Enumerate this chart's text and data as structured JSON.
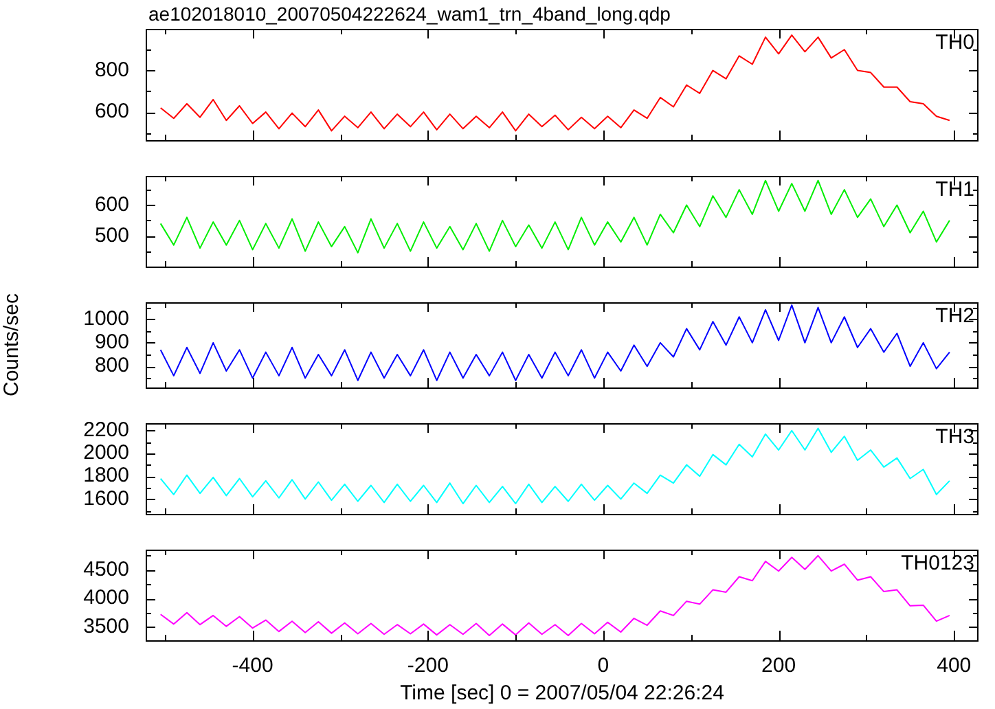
{
  "chart_data": [
    {
      "type": "line",
      "title": "ae102018010_20070504222624_wam1_trn_4band_long.qdp",
      "marker": "none",
      "tick_labels": "y",
      "x": [
        -505,
        -490,
        -475,
        -460,
        -445,
        -430,
        -415,
        -400,
        -385,
        -370,
        -355,
        -340,
        -325,
        -310,
        -295,
        -280,
        -265,
        -250,
        -235,
        -220,
        -205,
        -190,
        -175,
        -160,
        -145,
        -130,
        -115,
        -100,
        -85,
        -70,
        -55,
        -40,
        -25,
        -10,
        5,
        20,
        35,
        50,
        65,
        80,
        95,
        110,
        125,
        140,
        155,
        170,
        185,
        200,
        215,
        230,
        245,
        260,
        275,
        290,
        305,
        320,
        335,
        350,
        365,
        380,
        395
      ],
      "xlim": [
        -522,
        428
      ],
      "xticks": [
        {
          "value": -500,
          "label": null
        },
        -400,
        {
          "value": -300,
          "label": null
        },
        -200,
        {
          "value": -100,
          "label": null
        },
        0,
        {
          "value": 100,
          "label": null
        },
        200,
        {
          "value": 300,
          "label": null
        },
        400
      ],
      "ylim": [
        465,
        1000
      ],
      "yticks": [
        {
          "value": 500,
          "label": null
        },
        600,
        {
          "value": 700,
          "label": null
        },
        800,
        {
          "value": 900,
          "label": null
        }
      ],
      "series": [
        {
          "name": "TH0",
          "color": "#ff0000",
          "values": [
            620,
            570,
            640,
            575,
            660,
            560,
            630,
            545,
            600,
            520,
            595,
            530,
            610,
            510,
            580,
            525,
            600,
            520,
            590,
            530,
            600,
            515,
            590,
            520,
            580,
            525,
            600,
            510,
            590,
            530,
            585,
            515,
            575,
            520,
            580,
            525,
            610,
            570,
            670,
            625,
            730,
            690,
            800,
            760,
            870,
            830,
            960,
            880,
            970,
            890,
            960,
            860,
            900,
            800,
            790,
            720,
            720,
            650,
            640,
            580,
            560
          ]
        }
      ]
    },
    {
      "type": "line",
      "marker": "none",
      "tick_labels": "y",
      "x": [
        -505,
        -490,
        -475,
        -460,
        -445,
        -430,
        -415,
        -400,
        -385,
        -370,
        -355,
        -340,
        -325,
        -310,
        -295,
        -280,
        -265,
        -250,
        -235,
        -220,
        -205,
        -190,
        -175,
        -160,
        -145,
        -130,
        -115,
        -100,
        -85,
        -70,
        -55,
        -40,
        -25,
        -10,
        5,
        20,
        35,
        50,
        65,
        80,
        95,
        110,
        125,
        140,
        155,
        170,
        185,
        200,
        215,
        230,
        245,
        260,
        275,
        290,
        305,
        320,
        335,
        350,
        365,
        380,
        395
      ],
      "xlim": [
        -522,
        428
      ],
      "xticks": [
        {
          "value": -500,
          "label": null
        },
        -400,
        {
          "value": -300,
          "label": null
        },
        -200,
        {
          "value": -100,
          "label": null
        },
        0,
        {
          "value": 100,
          "label": null
        },
        200,
        {
          "value": 300,
          "label": null
        },
        400
      ],
      "ylim": [
        400,
        695
      ],
      "yticks": [
        {
          "value": 450,
          "label": null
        },
        500,
        {
          "value": 550,
          "label": null
        },
        600,
        {
          "value": 650,
          "label": null
        }
      ],
      "series": [
        {
          "name": "TH1",
          "color": "#00ee00",
          "values": [
            540,
            470,
            560,
            460,
            545,
            470,
            550,
            455,
            540,
            460,
            555,
            450,
            545,
            465,
            530,
            445,
            555,
            460,
            540,
            450,
            545,
            460,
            530,
            455,
            540,
            450,
            550,
            465,
            535,
            460,
            545,
            455,
            560,
            470,
            545,
            480,
            560,
            470,
            570,
            510,
            600,
            530,
            630,
            560,
            650,
            570,
            680,
            580,
            670,
            580,
            680,
            570,
            650,
            560,
            620,
            530,
            600,
            510,
            580,
            480,
            550
          ]
        }
      ]
    },
    {
      "type": "line",
      "ylabel": "Counts/sec",
      "marker": "none",
      "tick_labels": "y",
      "x": [
        -505,
        -490,
        -475,
        -460,
        -445,
        -430,
        -415,
        -400,
        -385,
        -370,
        -355,
        -340,
        -325,
        -310,
        -295,
        -280,
        -265,
        -250,
        -235,
        -220,
        -205,
        -190,
        -175,
        -160,
        -145,
        -130,
        -115,
        -100,
        -85,
        -70,
        -55,
        -40,
        -25,
        -10,
        5,
        20,
        35,
        50,
        65,
        80,
        95,
        110,
        125,
        140,
        155,
        170,
        185,
        200,
        215,
        230,
        245,
        260,
        275,
        290,
        305,
        320,
        335,
        350,
        365,
        380,
        395
      ],
      "xlim": [
        -522,
        428
      ],
      "xticks": [
        {
          "value": -500,
          "label": null
        },
        -400,
        {
          "value": -300,
          "label": null
        },
        -200,
        {
          "value": -100,
          "label": null
        },
        0,
        {
          "value": 100,
          "label": null
        },
        200,
        {
          "value": 300,
          "label": null
        },
        400
      ],
      "ylim": [
        710,
        1072
      ],
      "yticks": [
        {
          "value": 750,
          "label": null
        },
        800,
        {
          "value": 850,
          "label": null
        },
        900,
        {
          "value": 950,
          "label": null
        },
        1000,
        {
          "value": 1050,
          "label": null
        }
      ],
      "series": [
        {
          "name": "TH2",
          "color": "#0000ff",
          "values": [
            870,
            760,
            880,
            770,
            900,
            780,
            870,
            750,
            860,
            760,
            880,
            750,
            850,
            760,
            870,
            740,
            860,
            750,
            850,
            760,
            870,
            740,
            860,
            750,
            850,
            760,
            860,
            740,
            850,
            750,
            860,
            760,
            870,
            750,
            860,
            780,
            890,
            800,
            900,
            840,
            960,
            870,
            990,
            890,
            1010,
            900,
            1040,
            910,
            1060,
            900,
            1050,
            900,
            1010,
            880,
            960,
            860,
            940,
            800,
            900,
            790,
            860
          ]
        }
      ]
    },
    {
      "type": "line",
      "marker": "none",
      "tick_labels": "y",
      "x": [
        -505,
        -490,
        -475,
        -460,
        -445,
        -430,
        -415,
        -400,
        -385,
        -370,
        -355,
        -340,
        -325,
        -310,
        -295,
        -280,
        -265,
        -250,
        -235,
        -220,
        -205,
        -190,
        -175,
        -160,
        -145,
        -130,
        -115,
        -100,
        -85,
        -70,
        -55,
        -40,
        -25,
        -10,
        5,
        20,
        35,
        50,
        65,
        80,
        95,
        110,
        125,
        140,
        155,
        170,
        185,
        200,
        215,
        230,
        245,
        260,
        275,
        290,
        305,
        320,
        335,
        350,
        365,
        380,
        395
      ],
      "xlim": [
        -522,
        428
      ],
      "xticks": [
        {
          "value": -500,
          "label": null
        },
        -400,
        {
          "value": -300,
          "label": null
        },
        -200,
        {
          "value": -100,
          "label": null
        },
        0,
        {
          "value": 100,
          "label": null
        },
        200,
        {
          "value": 300,
          "label": null
        },
        400
      ],
      "ylim": [
        1470,
        2265
      ],
      "yticks": [
        {
          "value": 1500,
          "label": null
        },
        1600,
        {
          "value": 1700,
          "label": null
        },
        1800,
        {
          "value": 1900,
          "label": null
        },
        2000,
        {
          "value": 2100,
          "label": null
        },
        2200
      ],
      "series": [
        {
          "name": "TH3",
          "color": "#00ffff",
          "values": [
            1780,
            1640,
            1810,
            1650,
            1790,
            1630,
            1780,
            1620,
            1760,
            1610,
            1770,
            1600,
            1750,
            1590,
            1730,
            1580,
            1720,
            1570,
            1730,
            1580,
            1720,
            1570,
            1740,
            1560,
            1720,
            1570,
            1710,
            1560,
            1730,
            1570,
            1710,
            1580,
            1730,
            1590,
            1720,
            1600,
            1740,
            1650,
            1810,
            1740,
            1900,
            1800,
            1990,
            1900,
            2080,
            1970,
            2170,
            2030,
            2200,
            2030,
            2220,
            2010,
            2150,
            1940,
            2030,
            1880,
            1960,
            1780,
            1860,
            1640,
            1760
          ]
        }
      ]
    },
    {
      "type": "line",
      "xlabel": "Time [sec] 0 = 2007/05/04 22:26:24",
      "marker": "none",
      "x": [
        -505,
        -490,
        -475,
        -460,
        -445,
        -430,
        -415,
        -400,
        -385,
        -370,
        -355,
        -340,
        -325,
        -310,
        -295,
        -280,
        -265,
        -250,
        -235,
        -220,
        -205,
        -190,
        -175,
        -160,
        -145,
        -130,
        -115,
        -100,
        -85,
        -70,
        -55,
        -40,
        -25,
        -10,
        5,
        20,
        35,
        50,
        65,
        80,
        95,
        110,
        125,
        140,
        155,
        170,
        185,
        200,
        215,
        230,
        245,
        260,
        275,
        290,
        305,
        320,
        335,
        350,
        365,
        380,
        395
      ],
      "xlim": [
        -522,
        428
      ],
      "xticks": [
        {
          "value": -500,
          "label": null
        },
        -400,
        {
          "value": -300,
          "label": null
        },
        -200,
        {
          "value": -100,
          "label": null
        },
        0,
        {
          "value": 100,
          "label": null
        },
        200,
        {
          "value": 300,
          "label": null
        },
        400
      ],
      "ylim": [
        3265,
        4856
      ],
      "yticks": [
        3500,
        {
          "value": 3750,
          "label": null
        },
        4000,
        {
          "value": 4250,
          "label": null
        },
        4500,
        {
          "value": 4750,
          "label": null
        }
      ],
      "series": [
        {
          "name": "TH0123",
          "color": "#ff00ff",
          "values": [
            3720,
            3550,
            3750,
            3540,
            3700,
            3510,
            3680,
            3480,
            3620,
            3420,
            3600,
            3400,
            3590,
            3390,
            3570,
            3380,
            3560,
            3370,
            3540,
            3380,
            3550,
            3360,
            3540,
            3370,
            3560,
            3350,
            3550,
            3360,
            3570,
            3370,
            3540,
            3350,
            3560,
            3380,
            3580,
            3410,
            3650,
            3530,
            3780,
            3700,
            3950,
            3900,
            4150,
            4110,
            4380,
            4310,
            4650,
            4480,
            4720,
            4510,
            4750,
            4480,
            4600,
            4320,
            4380,
            4120,
            4150,
            3870,
            3880,
            3600,
            3700
          ]
        }
      ]
    }
  ]
}
